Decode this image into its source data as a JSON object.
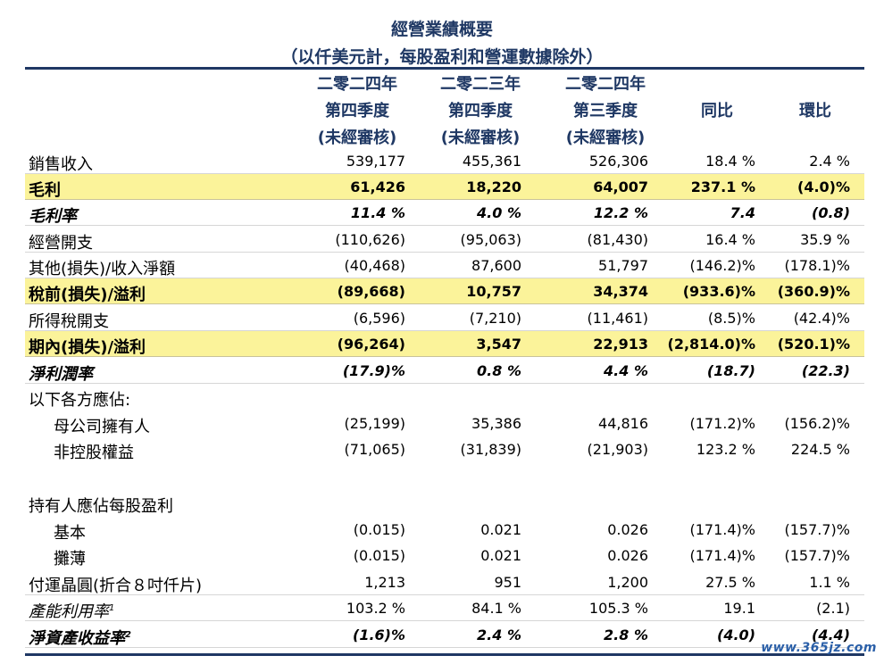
{
  "title": "經營業績概要",
  "subtitle": "（以仟美元計，每股盈利和營運數據除外）",
  "columns": [
    {
      "line1": "二零二四年",
      "line2": "第四季度",
      "line3": "(未經審核)"
    },
    {
      "line1": "二零二三年",
      "line2": "第四季度",
      "line3": "(未經審核)"
    },
    {
      "line1": "二零二四年",
      "line2": "第三季度",
      "line3": "(未經審核)"
    },
    {
      "line1": "",
      "line2": "同比",
      "line3": ""
    },
    {
      "line1": "",
      "line2": "環比",
      "line3": ""
    }
  ],
  "rows": [
    {
      "label": "銷售收入",
      "v": [
        "539,177",
        "455,361",
        "526,306",
        "18.4 %",
        "2.4 %"
      ]
    },
    {
      "label": "毛利",
      "v": [
        "61,426",
        "18,220",
        "64,007",
        "237.1 %",
        "(4.0)%"
      ]
    },
    {
      "label": "毛利率",
      "v": [
        "11.4 %",
        "4.0 %",
        "12.2 %",
        "7.4",
        "(0.8)"
      ]
    },
    {
      "label": "經營開支",
      "v": [
        "(110,626)",
        "(95,063)",
        "(81,430)",
        "16.4 %",
        "35.9 %"
      ]
    },
    {
      "label": "其他(損失)/收入淨額",
      "v": [
        "(40,468)",
        "87,600",
        "51,797",
        "(146.2)%",
        "(178.1)%"
      ]
    },
    {
      "label": "稅前(損失)/溢利",
      "v": [
        "(89,668)",
        "10,757",
        "34,374",
        "(933.6)%",
        "(360.9)%"
      ]
    },
    {
      "label": "所得稅開支",
      "v": [
        "(6,596)",
        "(7,210)",
        "(11,461)",
        "(8.5)%",
        "(42.4)%"
      ]
    },
    {
      "label": "期內(損失)/溢利",
      "v": [
        "(96,264)",
        "3,547",
        "22,913",
        "(2,814.0)%",
        "(520.1)%"
      ]
    },
    {
      "label": "淨利潤率",
      "v": [
        "(17.9)%",
        "0.8 %",
        "4.4 %",
        "(18.7)",
        "(22.3)"
      ]
    },
    {
      "label": "以下各方應佔:",
      "v": [
        "",
        "",
        "",
        "",
        ""
      ]
    },
    {
      "label": "母公司擁有人",
      "v": [
        "(25,199)",
        "35,386",
        "44,816",
        "(171.2)%",
        "(156.2)%"
      ]
    },
    {
      "label": "非控股權益",
      "v": [
        "(71,065)",
        "(31,839)",
        "(21,903)",
        "123.2 %",
        "224.5 %"
      ]
    },
    {
      "label": "持有人應佔每股盈利",
      "v": [
        "",
        "",
        "",
        "",
        ""
      ]
    },
    {
      "label": "基本",
      "v": [
        "(0.015)",
        "0.021",
        "0.026",
        "(171.4)%",
        "(157.7)%"
      ]
    },
    {
      "label": "攤薄",
      "v": [
        "(0.015)",
        "0.021",
        "0.026",
        "(171.4)%",
        "(157.7)%"
      ]
    },
    {
      "label": "付運晶圓(折合８吋仟片)",
      "v": [
        "1,213",
        "951",
        "1,200",
        "27.5 %",
        "1.1 %"
      ]
    },
    {
      "label": "產能利用率",
      "sup": "1",
      "v": [
        "103.2 %",
        "84.1 %",
        "105.3 %",
        "19.1",
        "(2.1)"
      ]
    },
    {
      "label": "淨資產收益率",
      "sup": "2",
      "v": [
        "(1.6)%",
        "2.4 %",
        "2.8 %",
        "(4.0)",
        "(4.4)"
      ]
    }
  ],
  "watermark": "www.365jz.com",
  "colors": {
    "header": "#1f3864",
    "highlight": "#fbf39a"
  }
}
